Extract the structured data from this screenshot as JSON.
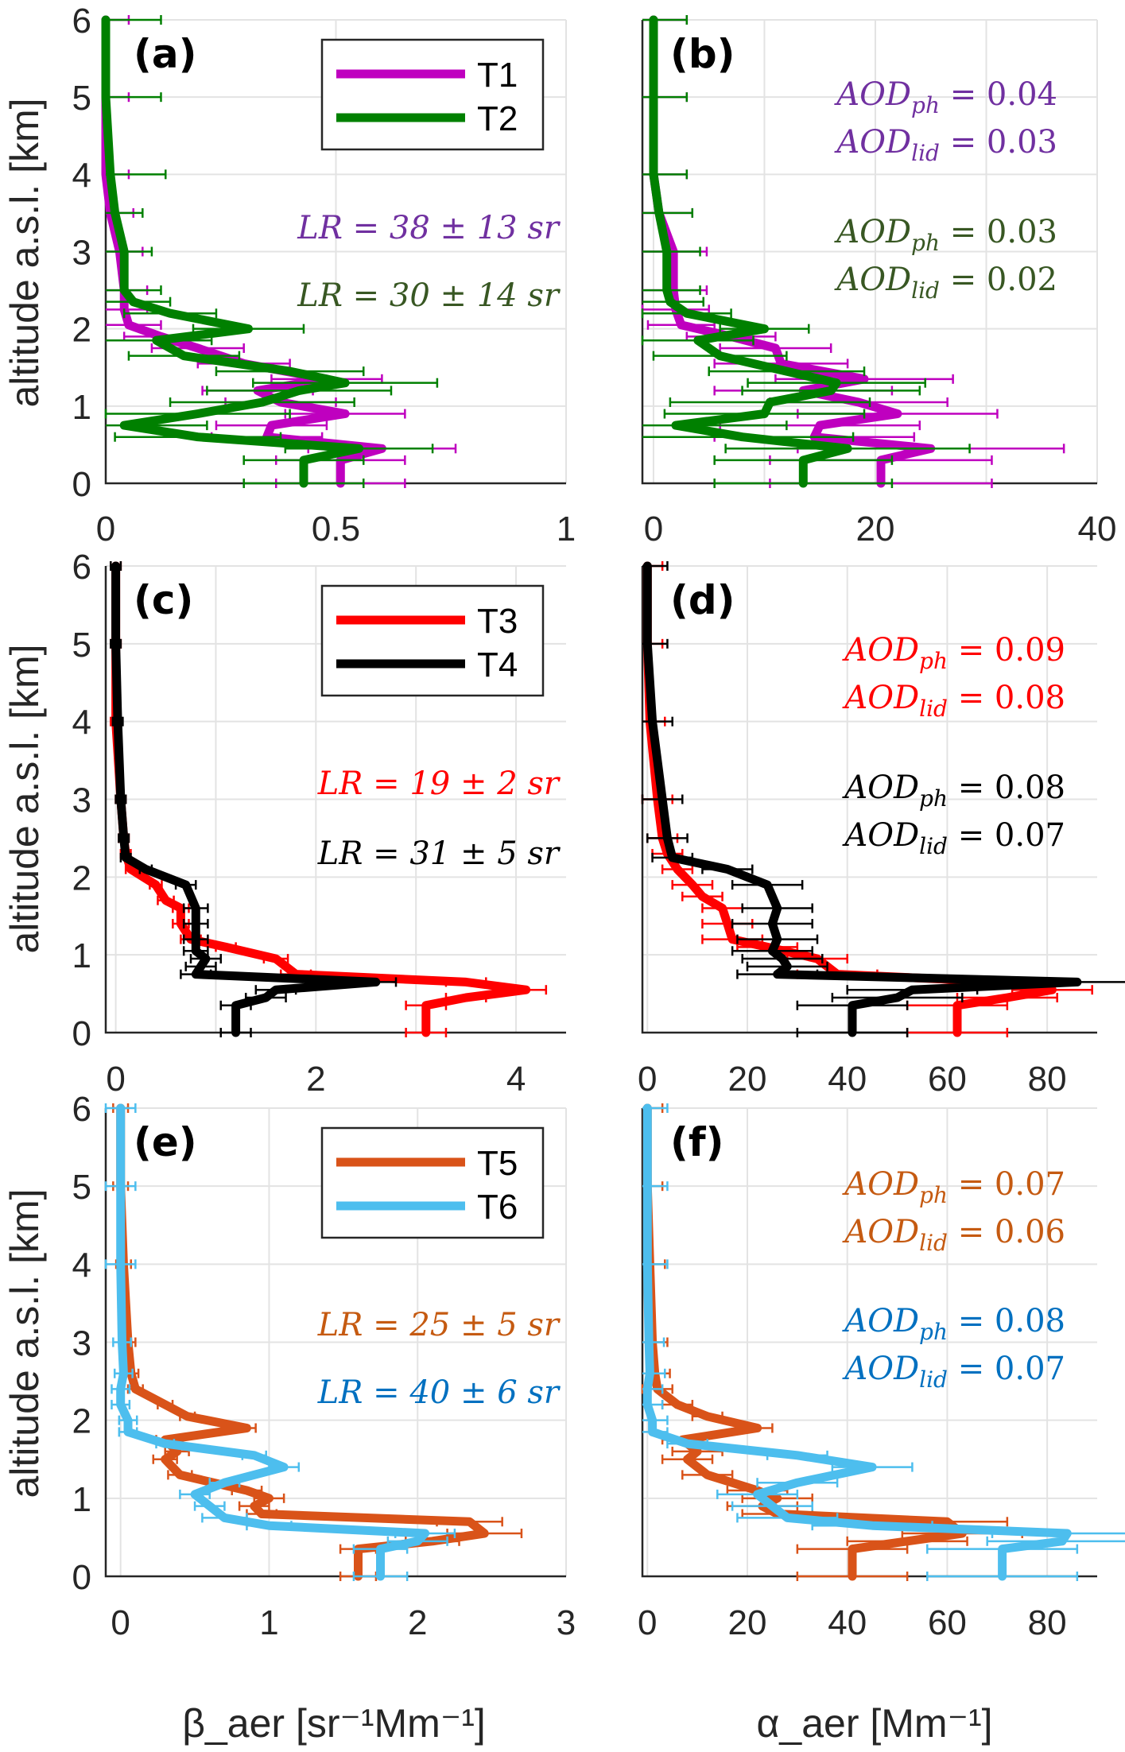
{
  "figure": {
    "y_axis_label": "altitude a.s.l. [km]",
    "x_axis_label_left": "β_aer [sr⁻¹Mm⁻¹]",
    "x_axis_label_right": "α_aer [Mm⁻¹]"
  },
  "chart_data": [
    {
      "id": "a",
      "panel_label": "(a)",
      "type": "line",
      "xlabel": "β_aer [sr⁻¹Mm⁻¹]",
      "ylabel": "altitude a.s.l. [km]",
      "xlim": [
        0,
        1
      ],
      "ylim": [
        0,
        6
      ],
      "xticks": [
        "0",
        "0.5",
        "1"
      ],
      "yticks": [
        "0",
        "1",
        "2",
        "3",
        "4",
        "5",
        "6"
      ],
      "grid": true,
      "legend": {
        "placement": "top-right",
        "entries": [
          "T1",
          "T2"
        ]
      },
      "annotations": [
        {
          "text": "LR = 38 ± 13 sr",
          "series": "T1"
        },
        {
          "text": "LR = 30 ± 14 sr",
          "series": "T2"
        }
      ],
      "series": [
        {
          "name": "T1",
          "color": "#bf00bf",
          "text_color": "#7030a0",
          "y": [
            0,
            0.3,
            0.45,
            0.6,
            0.75,
            0.9,
            1.05,
            1.2,
            1.35,
            1.55,
            1.75,
            1.9,
            2.05,
            2.25,
            2.5,
            3.0,
            3.5,
            4.0,
            5.0,
            6.0
          ],
          "x": [
            0.51,
            0.51,
            0.6,
            0.35,
            0.36,
            0.52,
            0.38,
            0.33,
            0.48,
            0.3,
            0.2,
            0.12,
            0.05,
            0.04,
            0.04,
            0.03,
            0.01,
            0,
            0,
            0
          ],
          "err": [
            0.14,
            0.14,
            0.16,
            0.12,
            0.12,
            0.13,
            0.12,
            0.12,
            0.12,
            0.1,
            0.1,
            0.08,
            0.07,
            0.05,
            0.05,
            0.05,
            0.05,
            0.05,
            0.05,
            0.05
          ]
        },
        {
          "name": "T2",
          "color": "#008000",
          "text_color": "#385723",
          "y": [
            0,
            0.3,
            0.45,
            0.6,
            0.75,
            0.9,
            1.05,
            1.2,
            1.3,
            1.45,
            1.65,
            1.85,
            2.0,
            2.2,
            2.35,
            2.5,
            3.0,
            3.5,
            4.0,
            5.0,
            6.0
          ],
          "x": [
            0.43,
            0.43,
            0.55,
            0.2,
            0.04,
            0.2,
            0.34,
            0.42,
            0.52,
            0.4,
            0.17,
            0.11,
            0.31,
            0.14,
            0.06,
            0.04,
            0.04,
            0.02,
            0.01,
            0,
            0
          ],
          "err": [
            0.13,
            0.13,
            0.16,
            0.18,
            0.18,
            0.2,
            0.2,
            0.2,
            0.2,
            0.16,
            0.12,
            0.12,
            0.12,
            0.1,
            0.08,
            0.08,
            0.06,
            0.06,
            0.12,
            0.12,
            0.12
          ]
        }
      ]
    },
    {
      "id": "b",
      "panel_label": "(b)",
      "type": "line",
      "xlabel": "α_aer [Mm⁻¹]",
      "ylabel": "",
      "xlim": [
        -1,
        40
      ],
      "ylim": [
        0,
        6
      ],
      "xticks": [
        "0",
        "20",
        "40"
      ],
      "yticks": [],
      "grid": true,
      "annotations": [
        {
          "text": "AOD_ph = 0.04",
          "series": "T1"
        },
        {
          "text": "AOD_lid = 0.03",
          "series": "T1"
        },
        {
          "text": "AOD_ph = 0.03",
          "series": "T2"
        },
        {
          "text": "AOD_lid = 0.02",
          "series": "T2"
        }
      ],
      "series": [
        {
          "name": "T1",
          "color": "#bf00bf",
          "text_color": "#7030a0",
          "y": [
            0,
            0.3,
            0.45,
            0.6,
            0.75,
            0.9,
            1.05,
            1.2,
            1.35,
            1.55,
            1.75,
            1.9,
            2.05,
            2.25,
            2.5,
            3.0,
            3.5,
            4.0,
            5.0,
            6.0
          ],
          "x": [
            20.5,
            20.5,
            25,
            14.5,
            15,
            22,
            18.5,
            13.5,
            19,
            11.5,
            11,
            7,
            2.5,
            2,
            1.8,
            1.8,
            0.5,
            0,
            0,
            0
          ],
          "err": [
            10,
            10,
            12,
            9,
            9,
            9,
            8,
            8,
            8,
            6,
            5,
            4,
            3,
            3,
            3,
            3,
            3,
            3,
            3,
            3
          ]
        },
        {
          "name": "T2",
          "color": "#008000",
          "text_color": "#385723",
          "y": [
            0,
            0.3,
            0.45,
            0.6,
            0.75,
            0.9,
            1.05,
            1.2,
            1.3,
            1.45,
            1.65,
            1.85,
            2.0,
            2.2,
            2.35,
            2.5,
            3.0,
            3.5,
            4.0,
            5.0,
            6.0
          ],
          "x": [
            13.5,
            13.5,
            17.5,
            8,
            2,
            10,
            10.5,
            16,
            16.5,
            12,
            6,
            4,
            10,
            3,
            1.5,
            1.2,
            1.2,
            0.5,
            0,
            0,
            0
          ],
          "err": [
            8,
            8,
            11,
            10,
            10,
            9,
            9,
            8,
            8,
            7,
            6,
            5,
            4,
            4,
            3,
            3,
            3,
            3,
            3,
            3,
            3
          ]
        }
      ]
    },
    {
      "id": "c",
      "panel_label": "(c)",
      "type": "line",
      "xlabel": "β_aer [sr⁻¹Mm⁻¹]",
      "ylabel": "altitude a.s.l. [km]",
      "xlim": [
        -0.1,
        4.5
      ],
      "ylim": [
        0,
        6
      ],
      "xticks": [
        "0",
        "2",
        "4"
      ],
      "yticks": [
        "0",
        "1",
        "2",
        "3",
        "4",
        "5",
        "6"
      ],
      "grid": true,
      "legend": {
        "placement": "top-right",
        "entries": [
          "T3",
          "T4"
        ]
      },
      "annotations": [
        {
          "text": "LR = 19 ± 2 sr",
          "series": "T3"
        },
        {
          "text": "LR = 31 ± 5 sr",
          "series": "T4"
        }
      ],
      "series": [
        {
          "name": "T3",
          "color": "#ff0000",
          "text_color": "#ff0000",
          "y": [
            0,
            0.35,
            0.45,
            0.55,
            0.65,
            0.75,
            0.95,
            1.1,
            1.2,
            1.4,
            1.6,
            1.7,
            1.9,
            2.1,
            2.3,
            2.5,
            3.0,
            4.0,
            5.0,
            6.0
          ],
          "x": [
            3.1,
            3.1,
            3.5,
            4.1,
            3.5,
            1.8,
            1.6,
            1.1,
            0.75,
            0.65,
            0.65,
            0.5,
            0.4,
            0.15,
            0.1,
            0.08,
            0.05,
            0,
            0,
            0
          ],
          "err": [
            0.2,
            0.2,
            0.2,
            0.2,
            0.2,
            0.15,
            0.12,
            0.1,
            0.1,
            0.08,
            0.08,
            0.08,
            0.06,
            0.05,
            0.05,
            0.05,
            0.05,
            0.05,
            0.05,
            0.05
          ]
        },
        {
          "name": "T4",
          "color": "#000000",
          "text_color": "#000000",
          "y": [
            0,
            0.35,
            0.45,
            0.55,
            0.65,
            0.75,
            0.85,
            0.95,
            1.05,
            1.2,
            1.4,
            1.6,
            1.9,
            2.1,
            2.25,
            2.5,
            3.0,
            4.0,
            5.0,
            6.0
          ],
          "x": [
            1.2,
            1.2,
            1.5,
            1.6,
            2.6,
            0.8,
            0.85,
            0.9,
            0.8,
            0.8,
            0.8,
            0.8,
            0.7,
            0.3,
            0.1,
            0.08,
            0.05,
            0.02,
            0,
            0
          ],
          "err": [
            0.15,
            0.15,
            0.2,
            0.2,
            0.2,
            0.15,
            0.15,
            0.15,
            0.12,
            0.12,
            0.12,
            0.12,
            0.1,
            0.06,
            0.05,
            0.05,
            0.05,
            0.05,
            0.05,
            0.05
          ]
        }
      ]
    },
    {
      "id": "d",
      "panel_label": "(d)",
      "type": "line",
      "xlabel": "α_aer [Mm⁻¹]",
      "ylabel": "",
      "xlim": [
        -1,
        90
      ],
      "ylim": [
        0,
        6
      ],
      "xticks": [
        "0",
        "20",
        "40",
        "60",
        "80"
      ],
      "yticks": [],
      "grid": true,
      "annotations": [
        {
          "text": "AOD_ph = 0.09",
          "series": "T3"
        },
        {
          "text": "AOD_lid = 0.08",
          "series": "T3"
        },
        {
          "text": "AOD_ph = 0.08",
          "series": "T4"
        },
        {
          "text": "AOD_lid = 0.07",
          "series": "T4"
        }
      ],
      "series": [
        {
          "name": "T3",
          "color": "#ff0000",
          "text_color": "#ff0000",
          "y": [
            0,
            0.35,
            0.45,
            0.55,
            0.65,
            0.75,
            0.95,
            1.1,
            1.2,
            1.4,
            1.6,
            1.75,
            1.9,
            2.1,
            2.3,
            2.5,
            3.0,
            4.0,
            5.0,
            6.0
          ],
          "x": [
            62,
            62,
            72,
            81,
            72,
            38,
            34,
            24,
            17,
            16,
            15,
            11,
            9,
            6,
            4,
            3,
            2,
            0.5,
            0,
            0
          ],
          "err": [
            10,
            10,
            10,
            8,
            8,
            8,
            6,
            6,
            6,
            5,
            4,
            4,
            4,
            3,
            3,
            3,
            3,
            3,
            3,
            3
          ]
        },
        {
          "name": "T4",
          "color": "#000000",
          "text_color": "#000000",
          "y": [
            0,
            0.35,
            0.45,
            0.55,
            0.65,
            0.75,
            0.85,
            0.95,
            1.05,
            1.2,
            1.4,
            1.6,
            1.9,
            2.1,
            2.25,
            2.5,
            3.0,
            4.0,
            5.0,
            6.0
          ],
          "x": [
            41,
            41,
            50,
            53,
            86,
            26,
            28,
            27,
            25,
            26,
            25,
            26,
            24,
            16,
            5,
            4,
            3,
            1,
            0,
            0
          ],
          "err": [
            11,
            11,
            13,
            13,
            12,
            8,
            8,
            8,
            8,
            8,
            8,
            7,
            7,
            5,
            4,
            4,
            4,
            4,
            4,
            4
          ]
        }
      ]
    },
    {
      "id": "e",
      "panel_label": "(e)",
      "type": "line",
      "xlabel": "β_aer [sr⁻¹Mm⁻¹]",
      "ylabel": "altitude a.s.l. [km]",
      "xlim": [
        -0.1,
        3
      ],
      "ylim": [
        0,
        6
      ],
      "xticks": [
        "0",
        "1",
        "2",
        "3"
      ],
      "yticks": [
        "0",
        "1",
        "2",
        "3",
        "4",
        "5",
        "6"
      ],
      "grid": true,
      "legend": {
        "placement": "top-right",
        "entries": [
          "T5",
          "T6"
        ]
      },
      "annotations": [
        {
          "text": "LR = 25 ± 5 sr",
          "series": "T5"
        },
        {
          "text": "LR = 40 ± 6 sr",
          "series": "T6"
        }
      ],
      "series": [
        {
          "name": "T5",
          "color": "#d95319",
          "text_color": "#c55a11",
          "y": [
            0,
            0.35,
            0.45,
            0.55,
            0.7,
            0.8,
            0.9,
            1.0,
            1.1,
            1.3,
            1.5,
            1.6,
            1.75,
            1.9,
            2.05,
            2.2,
            2.4,
            2.6,
            3.0,
            4.0,
            5.0,
            6.0
          ],
          "x": [
            1.6,
            1.6,
            2.1,
            2.45,
            2.35,
            0.95,
            0.9,
            1.0,
            0.85,
            0.4,
            0.3,
            0.38,
            0.3,
            0.85,
            0.45,
            0.3,
            0.1,
            0.07,
            0.05,
            0.02,
            0,
            0
          ],
          "err": [
            0.12,
            0.12,
            0.18,
            0.25,
            0.22,
            0.1,
            0.1,
            0.1,
            0.1,
            0.08,
            0.08,
            0.08,
            0.06,
            0.06,
            0.05,
            0.05,
            0.05,
            0.05,
            0.05,
            0.05,
            0.05,
            0.05
          ]
        },
        {
          "name": "T6",
          "color": "#4dbeee",
          "text_color": "#0070c0",
          "y": [
            0,
            0.35,
            0.45,
            0.55,
            0.65,
            0.75,
            0.9,
            1.05,
            1.2,
            1.4,
            1.55,
            1.7,
            1.85,
            2.0,
            2.2,
            2.4,
            2.6,
            3.0,
            4.0,
            5.0,
            6.0
          ],
          "x": [
            1.75,
            1.75,
            2.0,
            2.05,
            1.0,
            0.7,
            0.6,
            0.5,
            0.7,
            1.1,
            0.9,
            0.3,
            0.05,
            0.05,
            0,
            0,
            0.02,
            0.01,
            0,
            0,
            0
          ],
          "err": [
            0.18,
            0.18,
            0.2,
            0.2,
            0.15,
            0.15,
            0.1,
            0.1,
            0.1,
            0.1,
            0.08,
            0.06,
            0.06,
            0.06,
            0.06,
            0.06,
            0.06,
            0.06,
            0.1,
            0.1,
            0.1
          ]
        }
      ]
    },
    {
      "id": "f",
      "panel_label": "(f)",
      "type": "line",
      "xlabel": "α_aer [Mm⁻¹]",
      "ylabel": "",
      "xlim": [
        -1,
        90
      ],
      "ylim": [
        0,
        6
      ],
      "xticks": [
        "0",
        "20",
        "40",
        "60",
        "80"
      ],
      "yticks": [],
      "grid": true,
      "annotations": [
        {
          "text": "AOD_ph = 0.07",
          "series": "T5"
        },
        {
          "text": "AOD_lid = 0.06",
          "series": "T5"
        },
        {
          "text": "AOD_ph = 0.08",
          "series": "T6"
        },
        {
          "text": "AOD_lid = 0.07",
          "series": "T6"
        }
      ],
      "series": [
        {
          "name": "T5",
          "color": "#d95319",
          "text_color": "#c55a11",
          "y": [
            0,
            0.35,
            0.45,
            0.55,
            0.7,
            0.8,
            0.9,
            1.0,
            1.1,
            1.3,
            1.5,
            1.6,
            1.75,
            1.9,
            2.05,
            2.2,
            2.4,
            2.6,
            3.0,
            4.0,
            5.0,
            6.0
          ],
          "x": [
            41,
            41,
            52,
            63,
            60,
            26,
            23,
            26,
            22,
            12,
            8,
            10,
            7,
            22,
            12,
            6,
            2,
            1.5,
            1,
            0.5,
            0,
            0
          ],
          "err": [
            11,
            11,
            12,
            12,
            12,
            7,
            7,
            7,
            6,
            5,
            5,
            5,
            4,
            3,
            3,
            3,
            3,
            3,
            3,
            3,
            3,
            3
          ]
        },
        {
          "name": "T6",
          "color": "#4dbeee",
          "text_color": "#0070c0",
          "y": [
            0,
            0.35,
            0.45,
            0.55,
            0.65,
            0.75,
            0.9,
            1.05,
            1.2,
            1.4,
            1.55,
            1.7,
            1.85,
            2.0,
            2.2,
            2.4,
            2.6,
            3.0,
            4.0,
            5.0,
            6.0
          ],
          "x": [
            71,
            71,
            83,
            84,
            45,
            28,
            25,
            22,
            30,
            45,
            30,
            8,
            1,
            1,
            0,
            0,
            0.5,
            0.3,
            0,
            0,
            0
          ],
          "err": [
            15,
            15,
            15,
            15,
            12,
            10,
            8,
            8,
            8,
            8,
            6,
            4,
            3,
            3,
            3,
            3,
            3,
            3,
            4,
            4,
            4
          ]
        }
      ]
    }
  ]
}
